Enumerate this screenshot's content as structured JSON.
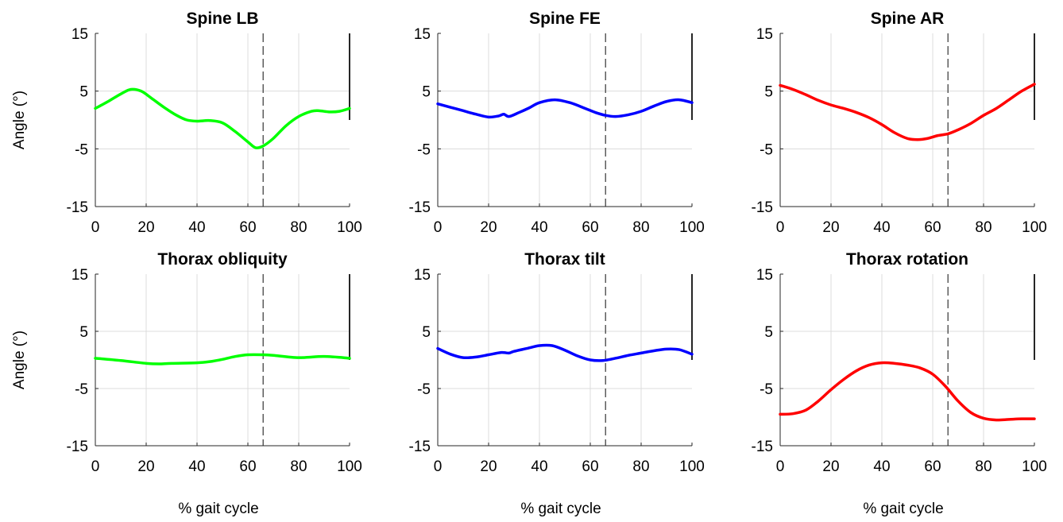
{
  "figure": {
    "ylabel": "Angle (°)",
    "xlabel": "% gait cycle"
  },
  "chart_data": [
    {
      "type": "line",
      "title": "Spine LB",
      "color": "#00ff00",
      "xlim": [
        0,
        100
      ],
      "ylim": [
        -15,
        15
      ],
      "xticks": [
        0,
        20,
        40,
        60,
        80,
        100
      ],
      "yticks": [
        15,
        5,
        -5,
        -15
      ],
      "grid": true,
      "event_line_x": 66,
      "ylabel": "Angle (°)",
      "xlabel": "",
      "series": [
        {
          "x": [
            0,
            5,
            10,
            14,
            18,
            22,
            27,
            32,
            36,
            40,
            45,
            50,
            55,
            60,
            63,
            66,
            70,
            75,
            80,
            85,
            88,
            92,
            96,
            100
          ],
          "y": [
            2,
            3.2,
            4.5,
            5.3,
            5,
            3.8,
            2.2,
            0.8,
            0,
            -0.2,
            -0.1,
            -0.5,
            -2,
            -3.8,
            -4.8,
            -4.5,
            -3.2,
            -1,
            0.6,
            1.5,
            1.6,
            1.4,
            1.5,
            2
          ]
        }
      ]
    },
    {
      "type": "line",
      "title": "Spine FE",
      "color": "#0000ff",
      "xlim": [
        0,
        100
      ],
      "ylim": [
        -15,
        15
      ],
      "xticks": [
        0,
        20,
        40,
        60,
        80,
        100
      ],
      "yticks": [
        15,
        5,
        -5,
        -15
      ],
      "grid": true,
      "event_line_x": 66,
      "ylabel": "",
      "xlabel": "",
      "series": [
        {
          "x": [
            0,
            5,
            10,
            15,
            20,
            24,
            26,
            28,
            32,
            36,
            40,
            46,
            52,
            58,
            62,
            66,
            70,
            75,
            80,
            85,
            90,
            95,
            100
          ],
          "y": [
            2.8,
            2.2,
            1.6,
            1,
            0.5,
            0.7,
            1,
            0.6,
            1.3,
            2.1,
            3,
            3.5,
            3,
            2,
            1.3,
            0.8,
            0.6,
            0.9,
            1.5,
            2.4,
            3.2,
            3.5,
            3
          ]
        }
      ]
    },
    {
      "type": "line",
      "title": "Spine AR",
      "color": "#ff0000",
      "xlim": [
        0,
        100
      ],
      "ylim": [
        -15,
        15
      ],
      "xticks": [
        0,
        20,
        40,
        60,
        80,
        100
      ],
      "yticks": [
        15,
        5,
        -5,
        -15
      ],
      "grid": true,
      "event_line_x": 66,
      "ylabel": "",
      "xlabel": "",
      "series": [
        {
          "x": [
            0,
            5,
            10,
            15,
            20,
            25,
            30,
            35,
            40,
            45,
            50,
            54,
            58,
            62,
            66,
            70,
            75,
            80,
            85,
            90,
            95,
            100
          ],
          "y": [
            6,
            5.3,
            4.4,
            3.4,
            2.6,
            2,
            1.3,
            0.4,
            -0.8,
            -2.2,
            -3.2,
            -3.4,
            -3.2,
            -2.7,
            -2.4,
            -1.7,
            -0.6,
            0.8,
            2,
            3.5,
            5,
            6.2
          ]
        }
      ]
    },
    {
      "type": "line",
      "title": "Thorax obliquity",
      "color": "#00ff00",
      "xlim": [
        0,
        100
      ],
      "ylim": [
        -15,
        15
      ],
      "xticks": [
        0,
        20,
        40,
        60,
        80,
        100
      ],
      "yticks": [
        15,
        5,
        -5,
        -15
      ],
      "grid": true,
      "event_line_x": 66,
      "ylabel": "Angle (°)",
      "xlabel": "% gait cycle",
      "series": [
        {
          "x": [
            0,
            10,
            20,
            25,
            30,
            40,
            45,
            50,
            55,
            60,
            66,
            70,
            80,
            90,
            100
          ],
          "y": [
            0.3,
            -0.1,
            -0.6,
            -0.7,
            -0.6,
            -0.5,
            -0.3,
            0.1,
            0.6,
            0.9,
            0.9,
            0.8,
            0.4,
            0.6,
            0.3
          ]
        }
      ]
    },
    {
      "type": "line",
      "title": "Thorax tilt",
      "color": "#0000ff",
      "xlim": [
        0,
        100
      ],
      "ylim": [
        -15,
        15
      ],
      "xticks": [
        0,
        20,
        40,
        60,
        80,
        100
      ],
      "yticks": [
        15,
        5,
        -5,
        -15
      ],
      "grid": true,
      "event_line_x": 66,
      "ylabel": "",
      "xlabel": "% gait cycle",
      "series": [
        {
          "x": [
            0,
            5,
            10,
            15,
            20,
            25,
            28,
            30,
            35,
            40,
            45,
            50,
            55,
            60,
            65,
            70,
            75,
            80,
            85,
            90,
            95,
            100
          ],
          "y": [
            2,
            1,
            0.4,
            0.5,
            0.9,
            1.3,
            1.2,
            1.5,
            2,
            2.5,
            2.5,
            1.7,
            0.7,
            0,
            -0.1,
            0.3,
            0.8,
            1.2,
            1.6,
            1.9,
            1.8,
            1
          ]
        }
      ]
    },
    {
      "type": "line",
      "title": "Thorax rotation",
      "color": "#ff0000",
      "xlim": [
        0,
        100
      ],
      "ylim": [
        -15,
        15
      ],
      "xticks": [
        0,
        20,
        40,
        60,
        80,
        100
      ],
      "yticks": [
        15,
        5,
        -5,
        -15
      ],
      "grid": true,
      "event_line_x": 66,
      "ylabel": "",
      "xlabel": "% gait cycle",
      "series": [
        {
          "x": [
            0,
            5,
            10,
            15,
            20,
            25,
            30,
            35,
            40,
            45,
            50,
            55,
            60,
            65,
            70,
            75,
            80,
            85,
            90,
            95,
            100
          ],
          "y": [
            -9.5,
            -9.4,
            -8.8,
            -7.2,
            -5.2,
            -3.4,
            -1.9,
            -0.9,
            -0.5,
            -0.6,
            -0.9,
            -1.4,
            -2.5,
            -4.6,
            -7.2,
            -9.2,
            -10.2,
            -10.5,
            -10.4,
            -10.3,
            -10.3
          ]
        }
      ]
    }
  ]
}
